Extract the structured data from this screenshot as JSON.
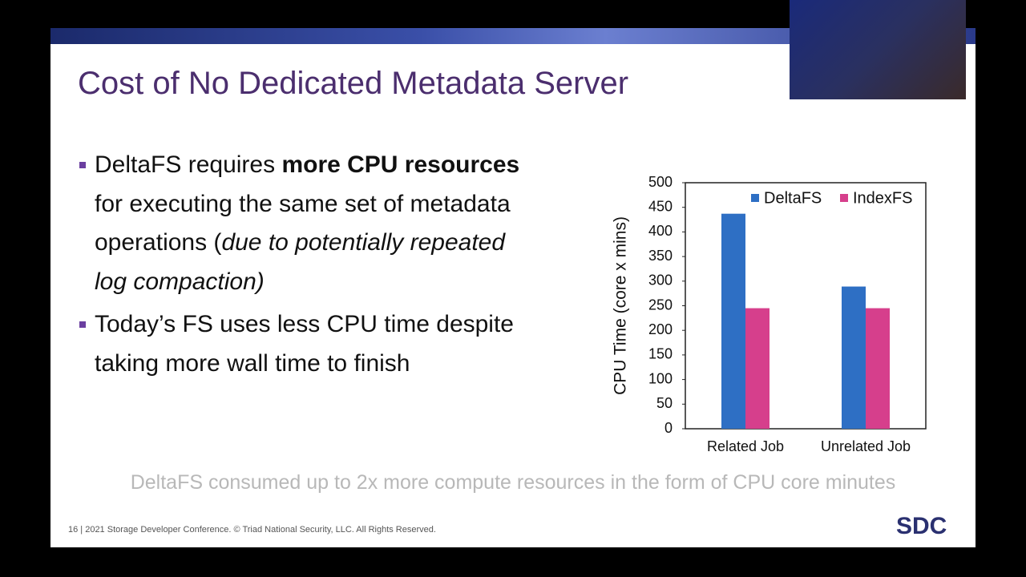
{
  "slide": {
    "title": "Cost of No Dedicated Metadata Server",
    "bullets": [
      {
        "runs": [
          {
            "text": "DeltaFS requires ",
            "style": "normal"
          },
          {
            "text": "more CPU resources",
            "style": "bold"
          },
          {
            "text": " for executing the same set of metadata operations (",
            "style": "normal"
          },
          {
            "text": "due to potentially repeated log compaction)",
            "style": "italic"
          }
        ]
      },
      {
        "runs": [
          {
            "text": "Today’s FS uses less CPU time despite taking more wall time to finish",
            "style": "normal"
          }
        ]
      }
    ],
    "caption": "DeltaFS consumed up to 2x more compute resources in the form of CPU core minutes",
    "footer": "16 | 2021 Storage Developer Conference. © Triad National Security, LLC. All Rights Reserved.",
    "logo": "SDC"
  },
  "chart_data": {
    "type": "bar",
    "y_label": "CPU Time (core x mins)",
    "categories": [
      "Related Job",
      "Unrelated Job"
    ],
    "series": [
      {
        "name": "DeltaFS",
        "color": "#2e6fc4",
        "values": [
          437,
          289
        ]
      },
      {
        "name": "IndexFS",
        "color": "#d63f8c",
        "values": [
          245,
          245
        ]
      }
    ],
    "ylim": [
      0,
      500
    ],
    "yticks": [
      0,
      50,
      100,
      150,
      200,
      250,
      300,
      350,
      400,
      450,
      500
    ],
    "legend": "upper right"
  }
}
